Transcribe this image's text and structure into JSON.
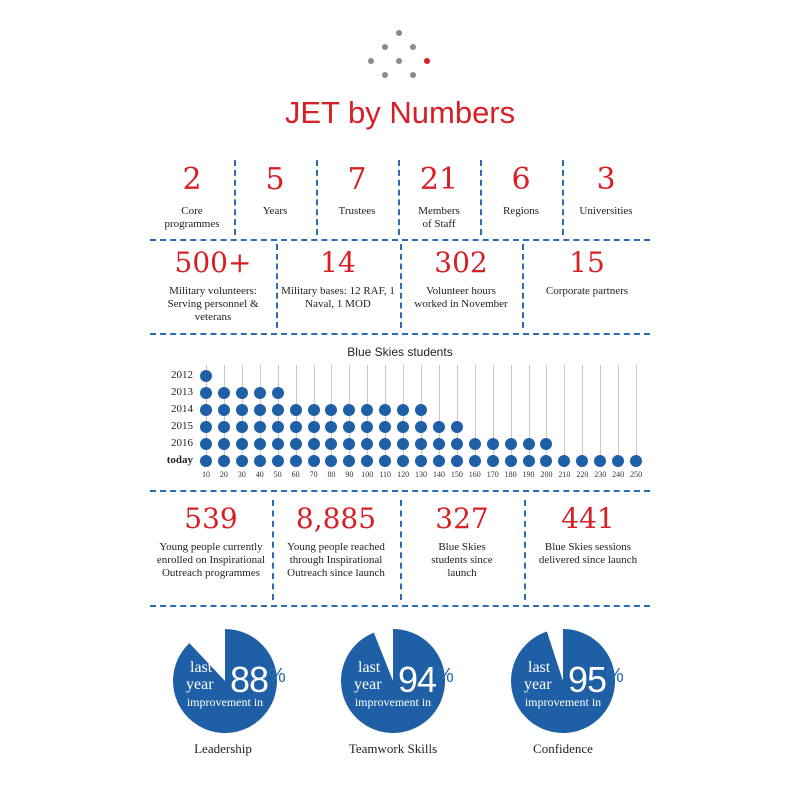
{
  "title": "JET by Numbers",
  "colors": {
    "accent_red": "#d81f26",
    "accent_blue": "#1f5fa6",
    "dash_blue": "#2b6cb3"
  },
  "row1": [
    {
      "value": "2",
      "label": "Core programmes"
    },
    {
      "value": "5",
      "label": "Years"
    },
    {
      "value": "7",
      "label": "Trustees"
    },
    {
      "value": "21",
      "label": "Members of Staff"
    },
    {
      "value": "6",
      "label": "Regions"
    },
    {
      "value": "3",
      "label": "Universities"
    }
  ],
  "row2": [
    {
      "value": "500+",
      "label": "Military volunteers: Serving personnel & veterans"
    },
    {
      "value": "14",
      "label": "Military bases: 12 RAF, 1 Naval, 1 MOD"
    },
    {
      "value": "302",
      "label": "Volunteer hours worked in November"
    },
    {
      "value": "15",
      "label": "Corporate partners"
    }
  ],
  "row3": [
    {
      "value": "539",
      "label": "Young people currently enrolled on Inspirational Outreach programmes"
    },
    {
      "value": "8,885",
      "label": "Young people reached through Inspirational Outreach since launch"
    },
    {
      "value": "327",
      "label": "Blue Skies students since launch"
    },
    {
      "value": "441",
      "label": "Blue Skies sessions delivered since launch"
    }
  ],
  "chart_data": {
    "type": "dot-bar",
    "title": "Blue Skies students",
    "categories": [
      "2012",
      "2013",
      "2014",
      "2015",
      "2016",
      "today"
    ],
    "values": [
      10,
      50,
      130,
      150,
      200,
      250
    ],
    "unit_per_dot": 10,
    "x_ticks": [
      10,
      20,
      30,
      40,
      50,
      60,
      70,
      80,
      90,
      100,
      110,
      120,
      130,
      140,
      150,
      160,
      170,
      180,
      190,
      200,
      210,
      220,
      230,
      240,
      250
    ],
    "xlim": [
      10,
      250
    ]
  },
  "gauges": [
    {
      "line1": "last",
      "line2": "year",
      "percent": "88",
      "sign": "%",
      "value": 88,
      "improvement": "improvement in",
      "name": "Leadership"
    },
    {
      "line1": "last",
      "line2": "year",
      "percent": "94",
      "sign": "%",
      "value": 94,
      "improvement": "improvement in",
      "name": "Teamwork Skills"
    },
    {
      "line1": "last",
      "line2": "year",
      "percent": "95",
      "sign": "%",
      "value": 95,
      "improvement": "improvement in",
      "name": "Confidence"
    }
  ]
}
